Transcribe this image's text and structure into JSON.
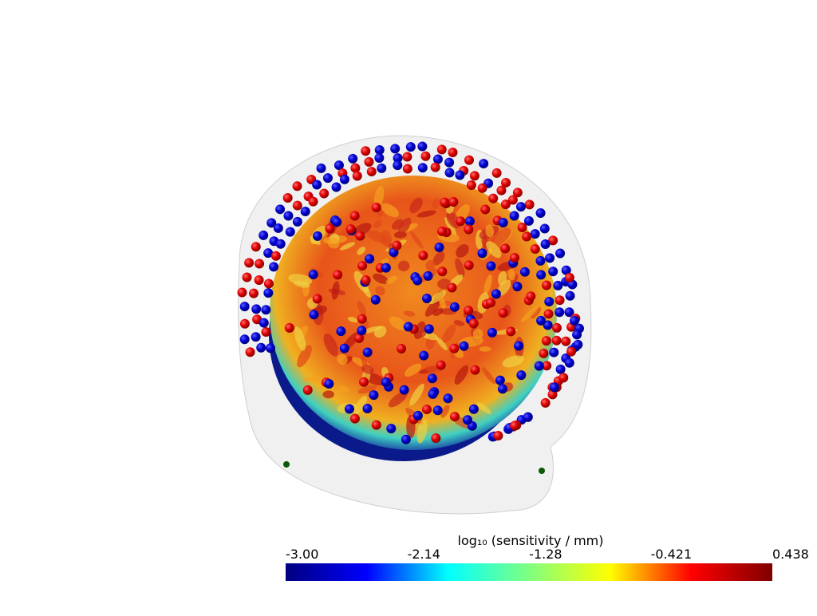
{
  "colorbar": {
    "title": "log₁₀ (sensitivity / mm)",
    "range": [
      -3,
      0.438
    ],
    "ticks": [
      {
        "value": -3,
        "label": "-3.00"
      },
      -2.14,
      -1.28,
      -0.421,
      0.438
    ],
    "colormap": [
      "#00007f",
      "#0000ff",
      "#00ffff",
      "#80ff80",
      "#ffff00",
      "#ff0000",
      "#7f0000"
    ]
  }
}
